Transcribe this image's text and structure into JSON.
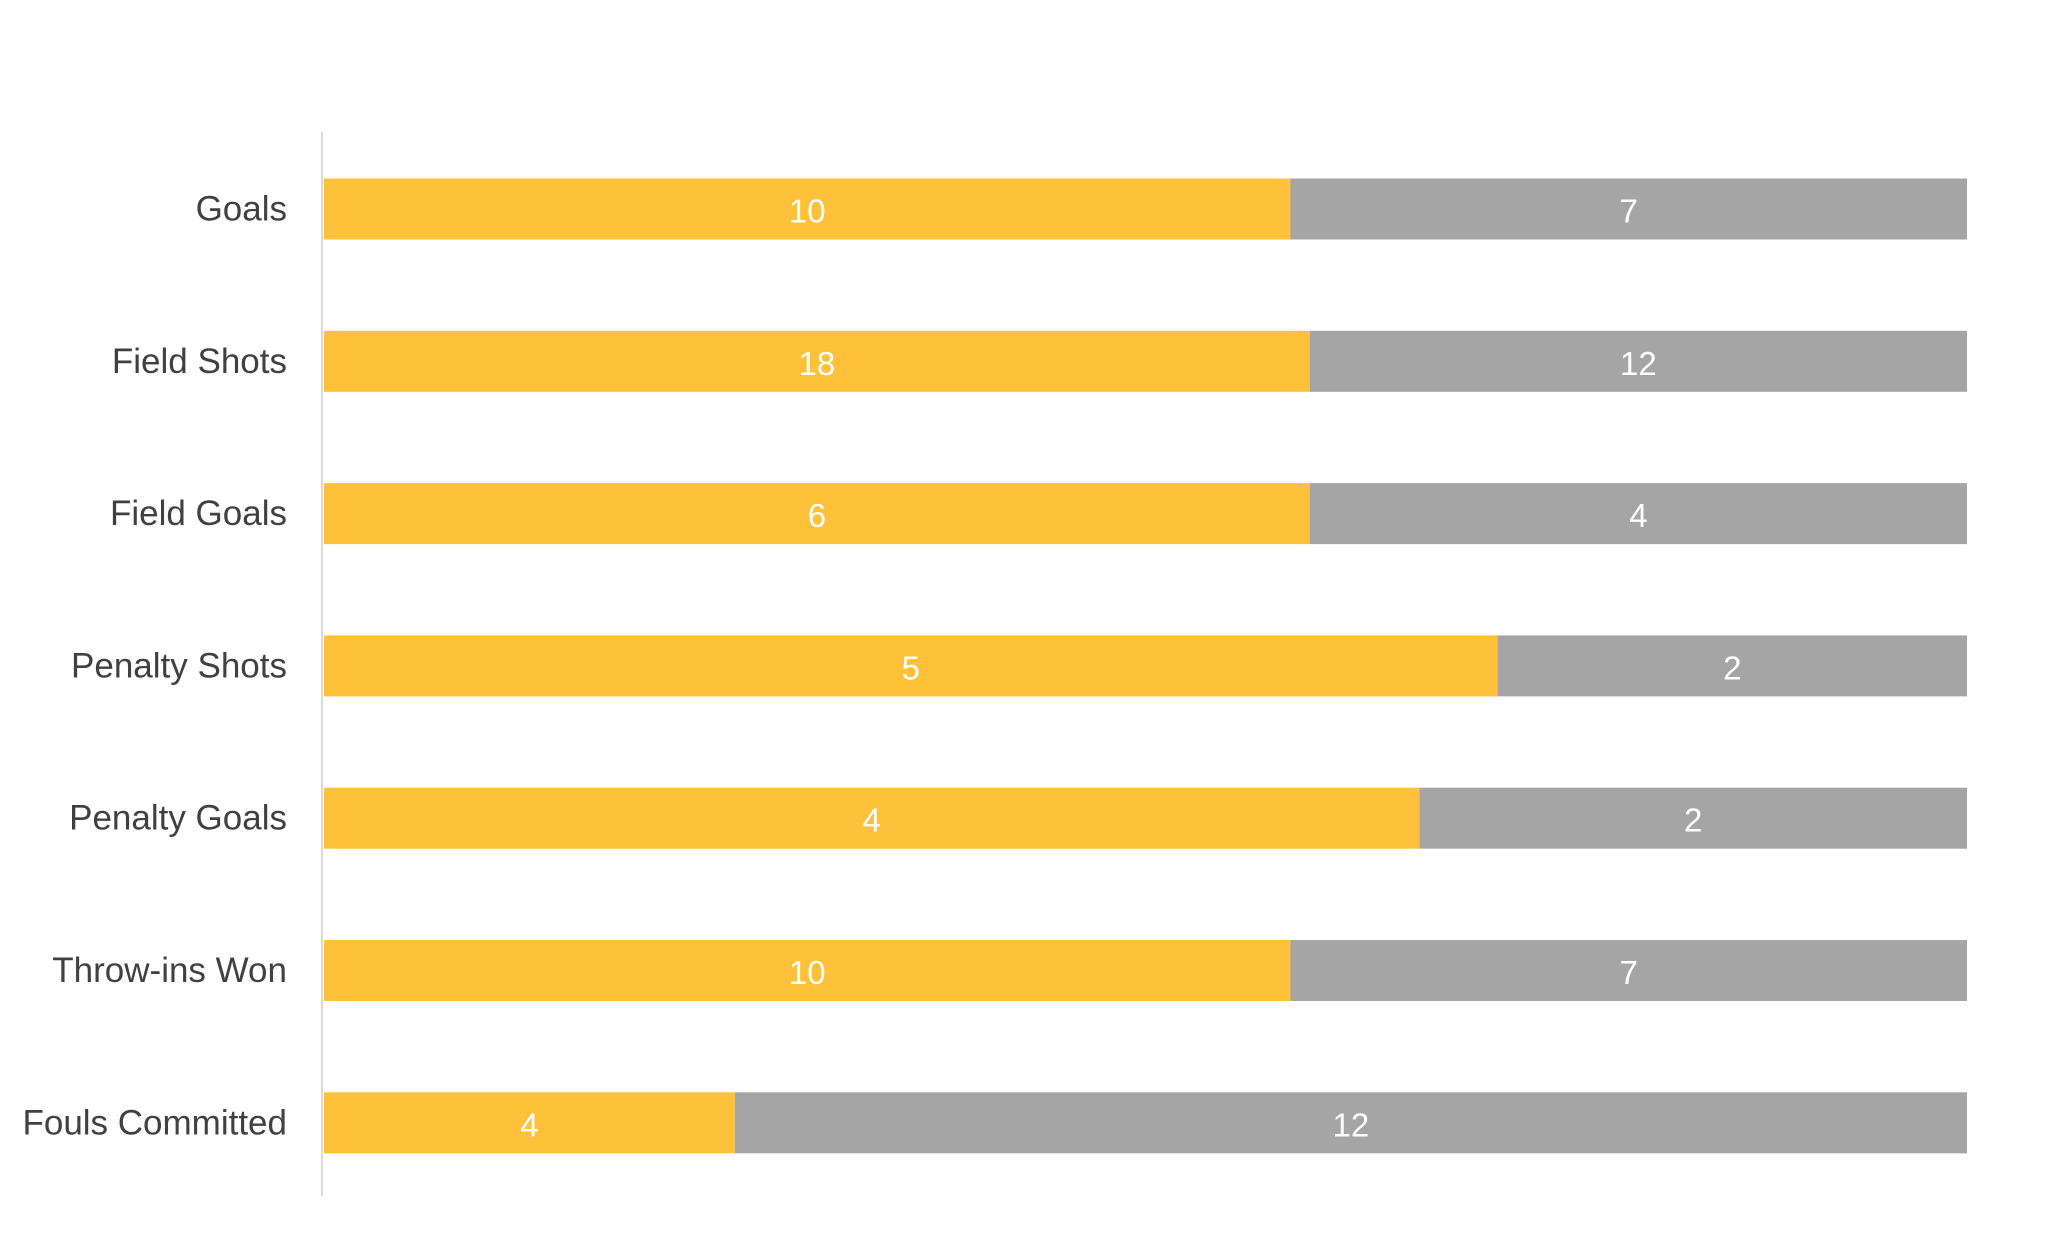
{
  "chart_data": {
    "type": "bar",
    "orientation": "horizontal",
    "stacking": "percent",
    "title": "",
    "xlabel": "",
    "ylabel": "",
    "legend": "none",
    "grid": false,
    "categories": [
      "Goals",
      "Field Shots",
      "Field Goals",
      "Penalty Shots",
      "Penalty Goals",
      "Throw-ins Won",
      "Fouls Committed"
    ],
    "series": [
      {
        "color": "#FFC03A",
        "values": [
          10,
          18,
          6,
          5,
          4,
          10,
          4
        ]
      },
      {
        "color": "#A5A5A5",
        "values": [
          7,
          12,
          4,
          2,
          2,
          7,
          12
        ]
      }
    ]
  }
}
